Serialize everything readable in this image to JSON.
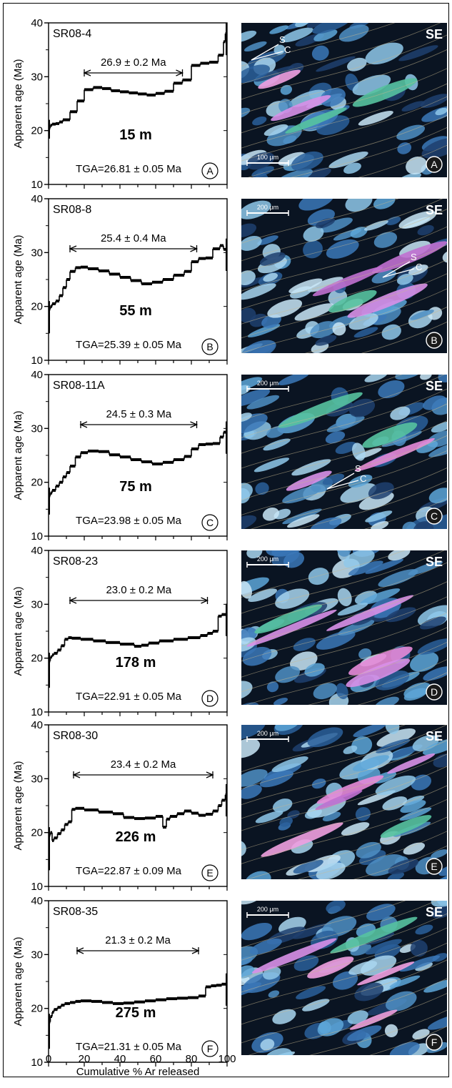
{
  "figure": {
    "x_axis_label": "Cumulative % Ar released",
    "x_ticks": [
      "0",
      "20",
      "40",
      "60",
      "80",
      "100"
    ],
    "y_ticks": [
      "10",
      "20",
      "30",
      "40"
    ]
  },
  "panels": [
    {
      "sample": "SR08-4",
      "plateau": "26.9 ± 0.2 Ma",
      "depth": "15 m",
      "tga": "TGA=26.81 ± 0.05 Ma",
      "letter": "A",
      "y_label": "Apparent age (Ma)",
      "orient": "SE",
      "scale": "100 μm",
      "sc_s": "S",
      "sc_c": "C"
    },
    {
      "sample": "SR08-8",
      "plateau": "25.4 ± 0.4 Ma",
      "depth": "55 m",
      "tga": "TGA=25.39 ± 0.05 Ma",
      "letter": "B",
      "y_label": "Apparent age (Ma)",
      "orient": "SE",
      "scale": "200 μm",
      "sc_s": "S",
      "sc_c": "C"
    },
    {
      "sample": "SR08-11A",
      "plateau": "24.5 ± 0.3 Ma",
      "depth": "75 m",
      "tga": "TGA=23.98 ± 0.05 Ma",
      "letter": "C",
      "y_label": "Apparent age (Ma)",
      "orient": "SE",
      "scale": "200 μm",
      "sc_s": "S",
      "sc_c": "C"
    },
    {
      "sample": "SR08-23",
      "plateau": "23.0 ± 0.2 Ma",
      "depth": "178 m",
      "tga": "TGA=22.91 ± 0.05 Ma",
      "letter": "D",
      "y_label": "Apparent age (Ma)",
      "orient": "SE",
      "scale": "200 μm",
      "sc_s": "",
      "sc_c": ""
    },
    {
      "sample": "SR08-30",
      "plateau": "23.4 ± 0.2 Ma",
      "depth": "226 m",
      "tga": "TGA=22.87 ± 0.09 Ma",
      "letter": "E",
      "y_label": "Apparent age (Ma)",
      "orient": "SE",
      "scale": "200 μm",
      "sc_s": "",
      "sc_c": ""
    },
    {
      "sample": "SR08-35",
      "plateau": "21.3 ± 0.2 Ma",
      "depth": "275 m",
      "tga": "TGA=21.31 ± 0.05 Ma",
      "letter": "F",
      "y_label": "Apparent age (Ma)",
      "orient": "SE",
      "scale": "200 μm",
      "sc_s": "",
      "sc_c": ""
    }
  ],
  "chart_data": [
    {
      "type": "line",
      "title": "SR08-4",
      "ylabel": "Apparent age (Ma)",
      "xlabel": "Cumulative % Ar released",
      "xlim": [
        0,
        100
      ],
      "ylim": [
        10,
        40
      ],
      "plateau_range": [
        20,
        75
      ],
      "x": [
        0,
        1,
        2,
        4,
        6,
        8,
        12,
        16,
        20,
        25,
        30,
        35,
        40,
        45,
        50,
        55,
        60,
        65,
        70,
        75,
        80,
        85,
        90,
        95,
        98,
        99,
        100
      ],
      "values": [
        21.0,
        20.5,
        21.0,
        21.2,
        21.3,
        21.6,
        22.0,
        23.5,
        25.5,
        27.6,
        28.0,
        27.8,
        27.4,
        27.2,
        27.0,
        26.8,
        26.6,
        26.9,
        27.3,
        28.8,
        29.4,
        32.1,
        32.5,
        32.7,
        34.0,
        36.5,
        38.0
      ]
    },
    {
      "type": "line",
      "title": "SR08-8",
      "ylabel": "Apparent age (Ma)",
      "xlabel": "Cumulative % Ar released",
      "xlim": [
        0,
        100
      ],
      "ylim": [
        10,
        40
      ],
      "plateau_range": [
        12,
        83
      ],
      "x": [
        0,
        1,
        2,
        4,
        6,
        8,
        10,
        12,
        15,
        18,
        22,
        28,
        34,
        40,
        46,
        52,
        58,
        64,
        70,
        76,
        80,
        84,
        88,
        92,
        96,
        98,
        100
      ],
      "values": [
        17.5,
        19.5,
        20.0,
        20.5,
        21.0,
        22.0,
        23.5,
        25.0,
        26.5,
        27.2,
        27.3,
        27.0,
        26.6,
        26.0,
        25.4,
        24.8,
        24.2,
        24.5,
        25.0,
        25.8,
        26.5,
        28.3,
        28.9,
        29.0,
        30.7,
        31.3,
        30.6
      ]
    },
    {
      "type": "line",
      "title": "SR08-11A",
      "ylabel": "Apparent age (Ma)",
      "xlabel": "Cumulative % Ar released",
      "xlim": [
        0,
        100
      ],
      "ylim": [
        10,
        40
      ],
      "plateau_range": [
        18,
        83
      ],
      "x": [
        0,
        1,
        2,
        4,
        6,
        8,
        10,
        12,
        15,
        18,
        22,
        28,
        34,
        40,
        46,
        52,
        58,
        64,
        70,
        76,
        80,
        84,
        88,
        92,
        96,
        98,
        100
      ],
      "values": [
        16.5,
        17.5,
        18.0,
        18.5,
        19.3,
        20.0,
        21.0,
        21.8,
        23.0,
        24.7,
        25.5,
        25.8,
        25.7,
        25.1,
        24.7,
        24.2,
        23.8,
        23.4,
        23.7,
        24.2,
        24.8,
        26.2,
        27.0,
        27.1,
        27.2,
        28.4,
        29.3
      ]
    },
    {
      "type": "line",
      "title": "SR08-23",
      "ylabel": "Apparent age (Ma)",
      "xlabel": "Cumulative % Ar released",
      "xlim": [
        0,
        100
      ],
      "ylim": [
        10,
        40
      ],
      "plateau_range": [
        12,
        89
      ],
      "x": [
        0,
        1,
        2,
        3,
        5,
        7,
        9,
        11,
        13,
        18,
        25,
        32,
        40,
        48,
        52,
        56,
        62,
        70,
        78,
        85,
        89,
        92,
        95,
        97,
        100
      ],
      "values": [
        17.0,
        19.5,
        20.2,
        20.6,
        20.9,
        21.5,
        22.3,
        23.5,
        23.8,
        23.7,
        23.5,
        23.2,
        22.9,
        22.6,
        22.2,
        22.4,
        22.8,
        23.2,
        23.5,
        23.8,
        24.2,
        24.6,
        25.0,
        27.8,
        28.1
      ]
    },
    {
      "type": "line",
      "title": "SR08-30",
      "ylabel": "Apparent age (Ma)",
      "xlabel": "Cumulative % Ar released",
      "xlim": [
        0,
        100
      ],
      "ylim": [
        10,
        40
      ],
      "plateau_range": [
        14,
        92
      ],
      "x": [
        0,
        1,
        2,
        3,
        5,
        7,
        9,
        11,
        13,
        15,
        20,
        28,
        36,
        42,
        48,
        54,
        60,
        64,
        66,
        68,
        72,
        76,
        80,
        84,
        88,
        92,
        95,
        97,
        99,
        100
      ],
      "values": [
        15.5,
        19.5,
        20.0,
        18.5,
        19.0,
        19.8,
        20.5,
        21.5,
        22.0,
        24.3,
        24.5,
        24.2,
        23.8,
        23.5,
        22.8,
        22.6,
        22.7,
        23.0,
        21.0,
        22.5,
        23.0,
        23.5,
        24.0,
        23.6,
        23.2,
        23.4,
        24.0,
        25.0,
        26.0,
        27.0
      ]
    },
    {
      "type": "line",
      "title": "SR08-35",
      "ylabel": "Apparent age (Ma)",
      "xlabel": "Cumulative % Ar released",
      "xlim": [
        0,
        100
      ],
      "ylim": [
        10,
        40
      ],
      "plateau_range": [
        16,
        84
      ],
      "x": [
        0,
        1,
        2,
        3,
        5,
        7,
        9,
        12,
        15,
        18,
        24,
        30,
        36,
        42,
        48,
        54,
        60,
        66,
        72,
        78,
        84,
        88,
        91,
        94,
        97,
        100
      ],
      "values": [
        15.0,
        17.5,
        18.5,
        19.3,
        19.8,
        20.2,
        20.6,
        20.9,
        21.1,
        21.3,
        21.4,
        21.3,
        21.1,
        20.9,
        21.0,
        21.2,
        21.4,
        21.6,
        21.8,
        21.9,
        22.0,
        22.3,
        24.0,
        24.2,
        24.3,
        24.5
      ]
    }
  ]
}
